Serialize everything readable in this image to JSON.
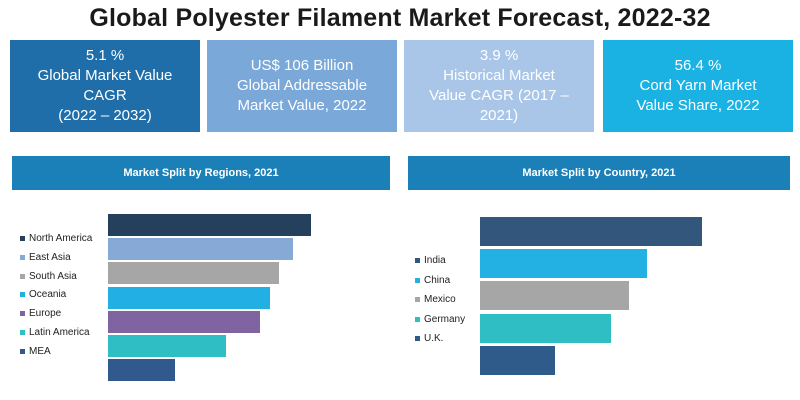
{
  "title": "Global Polyester Filament Market Forecast, 2022-32",
  "kpis": [
    {
      "lines": [
        "5.1 %",
        "Global Market Value",
        "CAGR",
        "(2022 – 2032)"
      ],
      "color": "#1f6ea9"
    },
    {
      "lines": [
        "US$ 106 Billion",
        "Global Addressable",
        "Market Value, 2022"
      ],
      "color": "#7aa8d8"
    },
    {
      "lines": [
        "3.9 %",
        "Historical Market",
        "Value CAGR (2017 –",
        "2021)"
      ],
      "color": "#a9c6e8"
    },
    {
      "lines": [
        "56.4 %",
        "Cord Yarn Market",
        "Value Share, 2022"
      ],
      "color": "#1ab1e3"
    }
  ],
  "chart_data": [
    {
      "type": "bar",
      "orientation": "horizontal",
      "title": "Market Split by Regions, 2021",
      "categories": [
        "North America",
        "East Asia",
        "South Asia",
        "Oceania",
        "Europe",
        "Latin America",
        "MEA"
      ],
      "values": [
        100,
        91,
        84,
        80,
        75,
        58,
        33
      ],
      "colors": [
        "#24405d",
        "#87a9d6",
        "#a6a6a6",
        "#22b0e4",
        "#8064a2",
        "#2fbec4",
        "#31598d"
      ],
      "xlim": [
        0,
        100
      ],
      "legend_position": "left"
    },
    {
      "type": "bar",
      "orientation": "horizontal",
      "title": "Market Split by Country, 2021",
      "categories": [
        "India",
        "China",
        "Mexico",
        "Germany",
        "U.K."
      ],
      "values": [
        100,
        75,
        67,
        59,
        34
      ],
      "colors": [
        "#33567d",
        "#23b1e4",
        "#a6a6a6",
        "#2fbec4",
        "#2f5b8b"
      ],
      "xlim": [
        0,
        100
      ],
      "legend_position": "left"
    }
  ]
}
